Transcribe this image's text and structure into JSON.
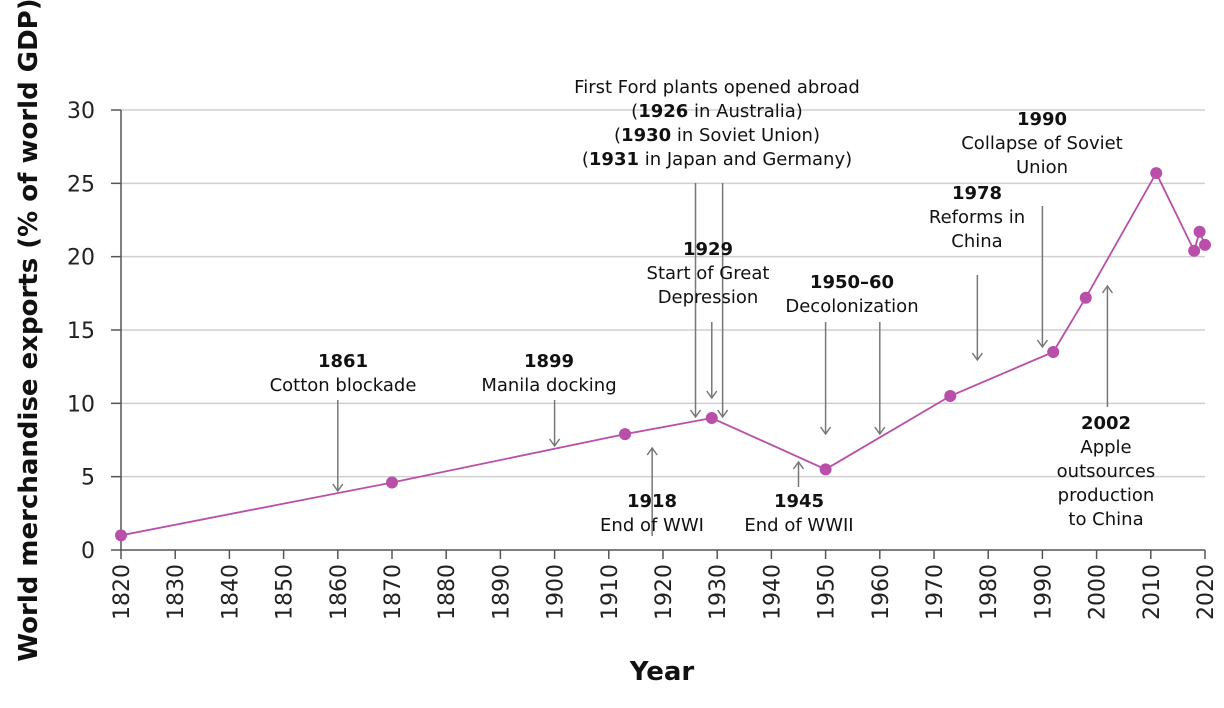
{
  "chart_data": {
    "type": "line",
    "xlabel": "Year",
    "ylabel": "World merchandise exports (% of world GDP)",
    "xlim": [
      1820,
      2020
    ],
    "ylim": [
      0,
      30
    ],
    "x_ticks": [
      1820,
      1830,
      1840,
      1850,
      1860,
      1870,
      1880,
      1890,
      1900,
      1910,
      1920,
      1930,
      1940,
      1950,
      1960,
      1970,
      1980,
      1990,
      2000,
      2010,
      2020
    ],
    "y_ticks": [
      0,
      5,
      10,
      15,
      20,
      25,
      30
    ],
    "grid": "horizontal",
    "series": [
      {
        "color": "#b94fa8",
        "x": [
          1820,
          1870,
          1913,
          1929,
          1950,
          1973,
          1992,
          1998,
          2011,
          2018,
          2019,
          2020
        ],
        "values": [
          1.0,
          4.6,
          7.9,
          9.0,
          5.5,
          10.5,
          13.5,
          17.2,
          25.7,
          20.4,
          21.7,
          20.8
        ]
      }
    ],
    "annotations": [
      {
        "id": "ford",
        "lines": [
          [
            {
              "t": "First Ford plants opened abroad",
              "b": false
            }
          ],
          [
            {
              "t": "(",
              "b": false
            },
            {
              "t": "1926",
              "b": true
            },
            {
              "t": " in Australia)",
              "b": false
            }
          ],
          [
            {
              "t": "(",
              "b": false
            },
            {
              "t": "1930",
              "b": true
            },
            {
              "t": " in Soviet Union)",
              "b": false
            }
          ],
          [
            {
              "t": "(",
              "b": false
            },
            {
              "t": "1931",
              "b": true
            },
            {
              "t": " in Japan and Germany)",
              "b": false
            }
          ]
        ],
        "arrows": [
          {
            "x": 1926,
            "dir": "down"
          },
          {
            "x": 1931,
            "dir": "down"
          }
        ]
      },
      {
        "id": "1990",
        "lines": [
          [
            {
              "t": "1990",
              "b": true
            }
          ],
          [
            {
              "t": "Collapse of Soviet",
              "b": false
            }
          ],
          [
            {
              "t": "Union",
              "b": false
            }
          ]
        ],
        "arrows": [
          {
            "x": 1990,
            "dir": "down"
          }
        ]
      },
      {
        "id": "1978",
        "lines": [
          [
            {
              "t": "1978",
              "b": true
            }
          ],
          [
            {
              "t": "Reforms in",
              "b": false
            }
          ],
          [
            {
              "t": "China",
              "b": false
            }
          ]
        ],
        "arrows": [
          {
            "x": 1978,
            "dir": "down"
          }
        ]
      },
      {
        "id": "1929",
        "lines": [
          [
            {
              "t": "1929",
              "b": true
            }
          ],
          [
            {
              "t": "Start of Great",
              "b": false
            }
          ],
          [
            {
              "t": "Depression",
              "b": false
            }
          ]
        ],
        "arrows": [
          {
            "x": 1929,
            "dir": "down"
          }
        ]
      },
      {
        "id": "1950",
        "lines": [
          [
            {
              "t": "1950–60",
              "b": true
            }
          ],
          [
            {
              "t": "Decolonization",
              "b": false
            }
          ]
        ],
        "arrows": [
          {
            "x": 1950,
            "dir": "down"
          },
          {
            "x": 1960,
            "dir": "down"
          }
        ]
      },
      {
        "id": "1861",
        "lines": [
          [
            {
              "t": "1861",
              "b": true
            }
          ],
          [
            {
              "t": "Cotton blockade",
              "b": false
            }
          ]
        ],
        "arrows": [
          {
            "x": 1860,
            "dir": "down"
          }
        ]
      },
      {
        "id": "1899",
        "lines": [
          [
            {
              "t": "1899",
              "b": true
            }
          ],
          [
            {
              "t": "Manila docking",
              "b": false
            }
          ]
        ],
        "arrows": [
          {
            "x": 1900,
            "dir": "down"
          }
        ]
      },
      {
        "id": "1918",
        "lines": [
          [
            {
              "t": "1918",
              "b": true
            }
          ],
          [
            {
              "t": "End of WWI",
              "b": false
            }
          ]
        ],
        "arrows": [
          {
            "x": 1918,
            "dir": "up"
          }
        ]
      },
      {
        "id": "1945",
        "lines": [
          [
            {
              "t": "1945",
              "b": true
            }
          ],
          [
            {
              "t": "End of WWII",
              "b": false
            }
          ]
        ],
        "arrows": [
          {
            "x": 1945,
            "dir": "up"
          }
        ]
      },
      {
        "id": "2002",
        "lines": [
          [
            {
              "t": "2002",
              "b": true
            }
          ],
          [
            {
              "t": "Apple",
              "b": false
            }
          ],
          [
            {
              "t": "outsources",
              "b": false
            }
          ],
          [
            {
              "t": "production",
              "b": false
            }
          ],
          [
            {
              "t": "to China",
              "b": false
            }
          ]
        ],
        "arrows": [
          {
            "x": 2002,
            "dir": "up"
          }
        ]
      }
    ]
  }
}
